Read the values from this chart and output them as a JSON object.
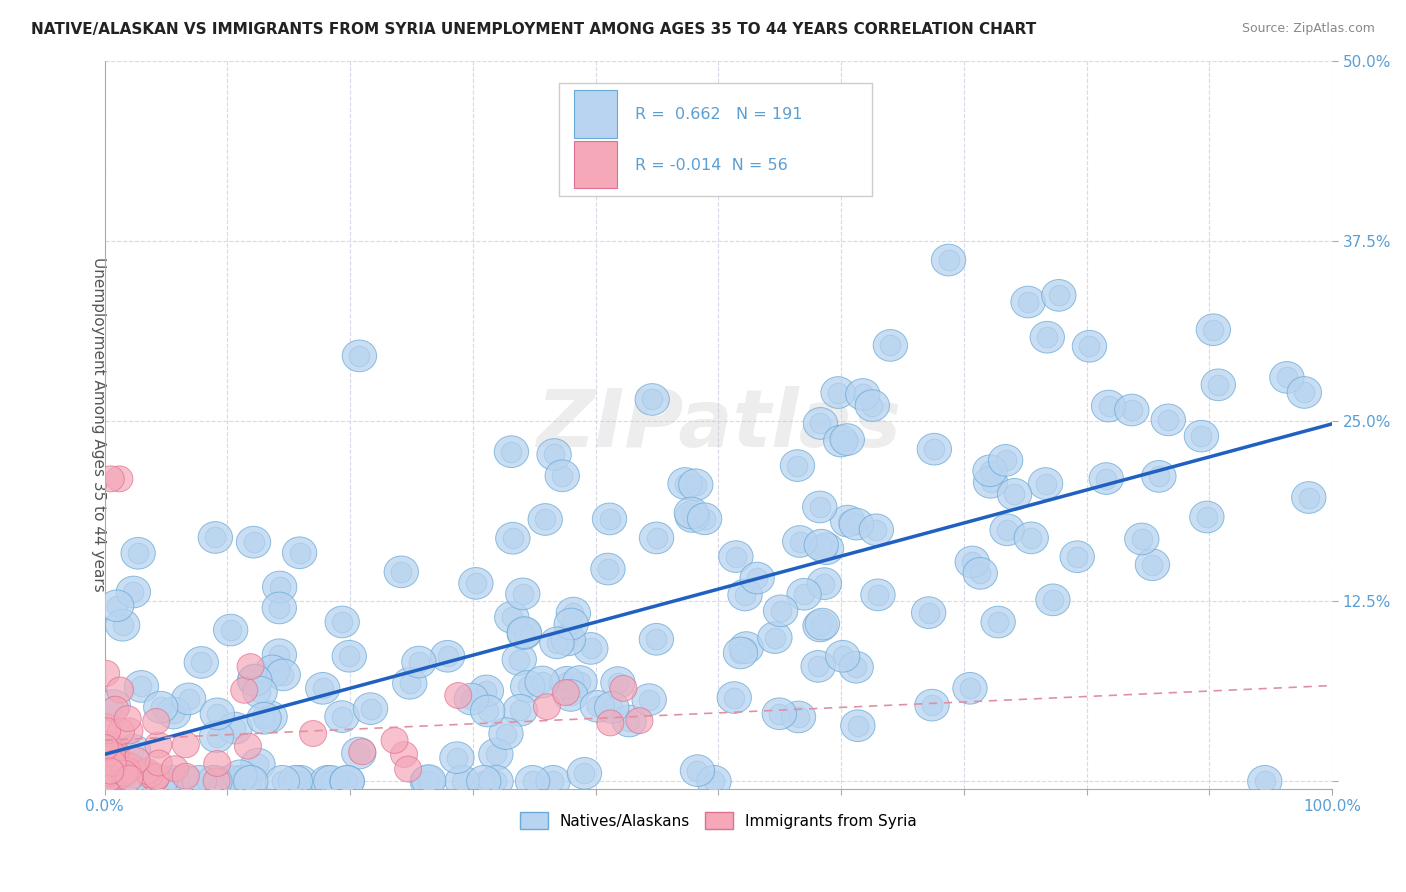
{
  "title": "NATIVE/ALASKAN VS IMMIGRANTS FROM SYRIA UNEMPLOYMENT AMONG AGES 35 TO 44 YEARS CORRELATION CHART",
  "source": "Source: ZipAtlas.com",
  "ylabel": "Unemployment Among Ages 35 to 44 years",
  "xlim": [
    0,
    1.0
  ],
  "ylim": [
    -0.005,
    0.5
  ],
  "xticks": [
    0.0,
    0.1,
    0.2,
    0.3,
    0.4,
    0.5,
    0.6,
    0.7,
    0.8,
    0.9,
    1.0
  ],
  "xticklabels": [
    "0.0%",
    "",
    "",
    "",
    "",
    "",
    "",
    "",
    "",
    "",
    "100.0%"
  ],
  "yticks": [
    0.0,
    0.125,
    0.25,
    0.375,
    0.5
  ],
  "yticklabels": [
    "",
    "12.5%",
    "25.0%",
    "37.5%",
    "50.0%"
  ],
  "blue_R": 0.662,
  "blue_N": 191,
  "pink_R": -0.014,
  "pink_N": 56,
  "blue_color": "#b8d4f0",
  "blue_edge_color": "#6aaad8",
  "pink_color": "#f4a8b8",
  "pink_edge_color": "#e07090",
  "blue_line_color": "#2060c0",
  "pink_line_color": "#e090a0",
  "tick_color": "#5a9fd4",
  "watermark": "ZIPatlas",
  "background_color": "#ffffff",
  "grid_color": "#d8d8e8",
  "legend_box_color": "#ffffff",
  "legend_border_color": "#cccccc"
}
